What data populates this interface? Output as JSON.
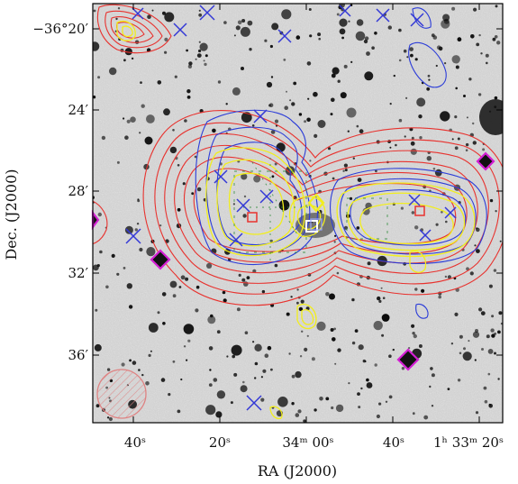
{
  "axes": {
    "xlabel": "RA (J2000)",
    "ylabel": "Dec. (J2000)"
  },
  "y_ticks": [
    "−36°20′",
    "24′",
    "28′",
    "32′",
    "36′"
  ],
  "x_ticks": [
    "40ˢ",
    "20ˢ",
    "34ᵐ 00ˢ",
    "40ˢ",
    "1ʰ 33ᵐ 20ˢ"
  ],
  "colors": {
    "red_contours": "#e8322e",
    "yellow_contours": "#f2ee1c",
    "blue_contours": "#2b3cd8",
    "green_contours": "#2e8b3a",
    "markers_blue_x": "#3338d6",
    "markers_magenta": "#d41fd4",
    "beam": "#e07a7a"
  },
  "markers": {
    "blue_x": "blue-x",
    "magenta_diamond": "magenta-diamond",
    "red_square": "red-square",
    "white_square": "white-square"
  }
}
